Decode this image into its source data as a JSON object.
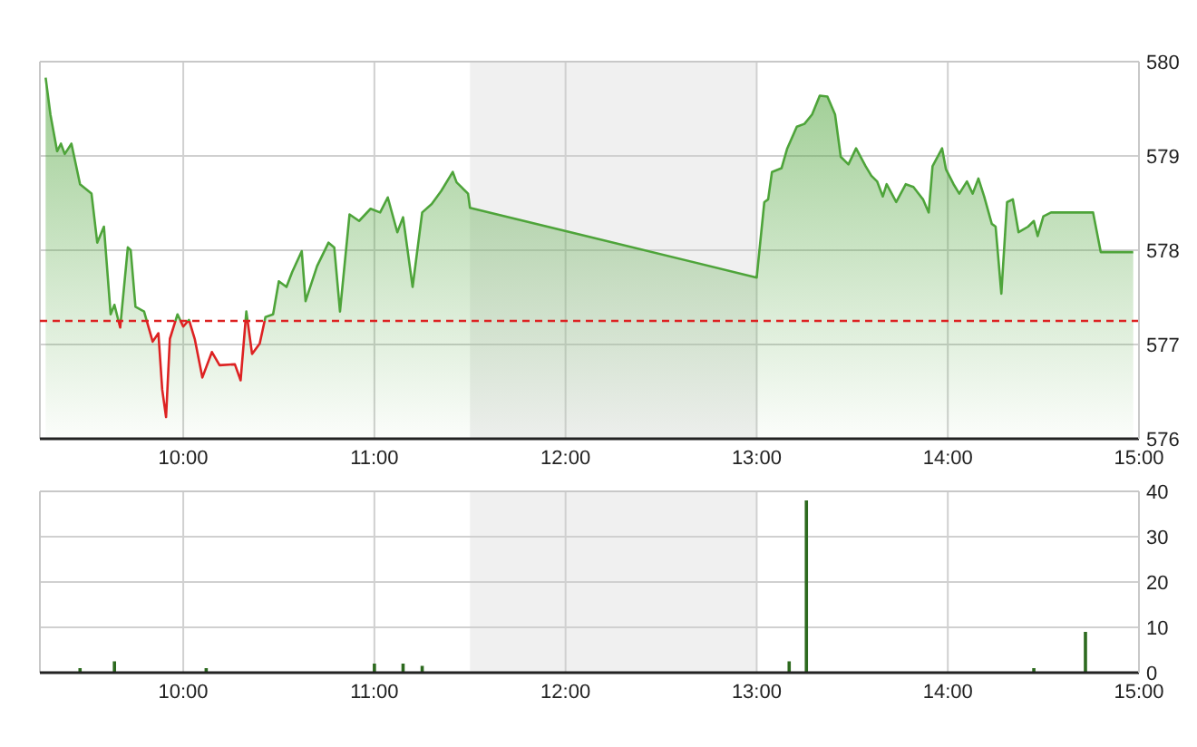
{
  "chart_data": [
    {
      "type": "area",
      "xlim": [
        9.25,
        15
      ],
      "ylim": [
        576,
        580
      ],
      "yticks": [
        576,
        577,
        578,
        579,
        580
      ],
      "xticks": [
        {
          "value": 10,
          "label": "10:00"
        },
        {
          "value": 11,
          "label": "11:00"
        },
        {
          "value": 12,
          "label": "12:00"
        },
        {
          "value": 13,
          "label": "13:00"
        },
        {
          "value": 14,
          "label": "14:00"
        },
        {
          "value": 15,
          "label": "15:00"
        }
      ],
      "grid": true,
      "ref_lines": [
        {
          "axis": "y",
          "value": 577.25,
          "color": "#dd2222",
          "line_style": "dashed"
        }
      ],
      "bands": [
        {
          "axis": "x",
          "from": 11.5,
          "to": 13,
          "color": "#f0f0f0"
        }
      ],
      "series": [
        {
          "color": "#4ea43a",
          "x": [
            9.28,
            9.305,
            9.34,
            9.36,
            9.38,
            9.415,
            9.46,
            9.52,
            9.55,
            9.585,
            9.62,
            9.64,
            9.67,
            9.71,
            9.725,
            9.75,
            9.795,
            9.84,
            9.87,
            9.89,
            9.91,
            9.93,
            9.97,
            10.0,
            10.03,
            10.06,
            10.1,
            10.15,
            10.19,
            10.27,
            10.3,
            10.33,
            10.36,
            10.4,
            10.43,
            10.47,
            10.5,
            10.54,
            10.57,
            10.62,
            10.64,
            10.7,
            10.76,
            10.79,
            10.82,
            10.87,
            10.92,
            10.98,
            11.03,
            11.07,
            11.12,
            11.15,
            11.2,
            11.25,
            11.3,
            11.35,
            11.41,
            11.43,
            11.49,
            11.5,
            13.0,
            13.04,
            13.06,
            13.08,
            13.13,
            13.16,
            13.21,
            13.25,
            13.29,
            13.33,
            13.37,
            13.41,
            13.44,
            13.48,
            13.52,
            13.57,
            13.6,
            13.63,
            13.66,
            13.68,
            13.73,
            13.78,
            13.82,
            13.87,
            13.9,
            13.92,
            13.97,
            13.99,
            14.03,
            14.06,
            14.1,
            14.13,
            14.16,
            14.19,
            14.23,
            14.25,
            14.28,
            14.31,
            14.34,
            14.37,
            14.42,
            14.45,
            14.47,
            14.5,
            14.54,
            14.76,
            14.8,
            14.97
          ],
          "values": [
            579.83,
            579.44,
            579.05,
            579.13,
            579.02,
            579.13,
            578.7,
            578.6,
            578.08,
            578.25,
            577.32,
            577.42,
            577.18,
            578.03,
            578.0,
            577.4,
            577.35,
            577.03,
            577.12,
            576.52,
            576.23,
            577.06,
            577.32,
            577.19,
            577.26,
            577.06,
            576.65,
            576.92,
            576.78,
            576.79,
            576.62,
            577.35,
            576.9,
            577.01,
            577.29,
            577.32,
            577.67,
            577.61,
            577.77,
            577.99,
            577.46,
            577.83,
            578.08,
            578.03,
            577.35,
            578.38,
            578.31,
            578.44,
            578.4,
            578.56,
            578.19,
            578.35,
            577.61,
            578.4,
            578.49,
            578.63,
            578.83,
            578.72,
            578.6,
            578.45,
            577.71,
            578.51,
            578.54,
            578.83,
            578.87,
            579.08,
            579.31,
            579.34,
            579.44,
            579.64,
            579.63,
            579.44,
            578.99,
            578.91,
            579.08,
            578.89,
            578.79,
            578.73,
            578.57,
            578.7,
            578.51,
            578.7,
            578.67,
            578.54,
            578.4,
            578.89,
            579.08,
            578.86,
            578.7,
            578.6,
            578.73,
            578.6,
            578.76,
            578.57,
            578.28,
            578.25,
            577.54,
            578.51,
            578.54,
            578.19,
            578.25,
            578.31,
            578.15,
            578.36,
            578.4,
            578.4,
            577.98,
            577.98
          ]
        }
      ]
    },
    {
      "type": "bar",
      "xlim": [
        9.25,
        15
      ],
      "ylim": [
        0,
        40
      ],
      "yticks": [
        0,
        10,
        20,
        30,
        40
      ],
      "xticks": [
        {
          "value": 10,
          "label": "10:00"
        },
        {
          "value": 11,
          "label": "11:00"
        },
        {
          "value": 12,
          "label": "12:00"
        },
        {
          "value": 13,
          "label": "13:00"
        },
        {
          "value": 14,
          "label": "14:00"
        },
        {
          "value": 15,
          "label": "15:00"
        }
      ],
      "grid": true,
      "bands": [
        {
          "axis": "x",
          "from": 11.5,
          "to": 13,
          "color": "#f0f0f0"
        }
      ],
      "series": [
        {
          "color": "#2d6a1f",
          "x": [
            9.46,
            9.64,
            10.12,
            11.0,
            11.15,
            11.25,
            13.17,
            13.26,
            14.45,
            14.72
          ],
          "values": [
            1,
            2.5,
            1,
            2,
            2,
            1.5,
            2.5,
            38,
            1,
            9
          ]
        }
      ]
    }
  ]
}
